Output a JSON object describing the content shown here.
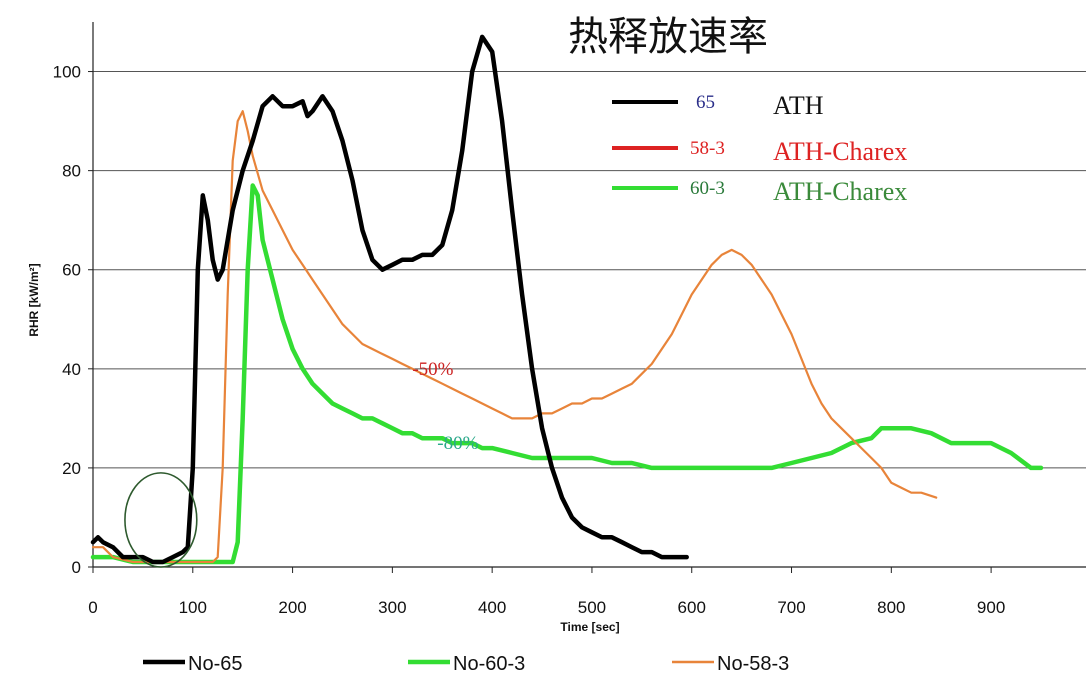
{
  "chart_data": {
    "type": "line",
    "title": "热释放速率",
    "xlabel": "Time [sec]",
    "ylabel": "RHR [kW/m²]",
    "xlim": [
      0,
      950
    ],
    "ylim": [
      0,
      110
    ],
    "x_ticks": [
      0,
      100,
      200,
      300,
      400,
      500,
      600,
      700,
      800,
      900
    ],
    "y_ticks": [
      0,
      20,
      40,
      60,
      80,
      100
    ],
    "grid": "horizontal",
    "legend_bottom": "bottom",
    "series": [
      {
        "name": "No-65",
        "color": "#000000",
        "points": [
          [
            0,
            5
          ],
          [
            5,
            6
          ],
          [
            10,
            5
          ],
          [
            20,
            4
          ],
          [
            30,
            2
          ],
          [
            40,
            2
          ],
          [
            50,
            2
          ],
          [
            60,
            1
          ],
          [
            70,
            1
          ],
          [
            80,
            2
          ],
          [
            90,
            3
          ],
          [
            95,
            4
          ],
          [
            100,
            20
          ],
          [
            105,
            60
          ],
          [
            110,
            75
          ],
          [
            115,
            70
          ],
          [
            120,
            62
          ],
          [
            125,
            58
          ],
          [
            130,
            60
          ],
          [
            140,
            72
          ],
          [
            150,
            80
          ],
          [
            160,
            86
          ],
          [
            170,
            93
          ],
          [
            180,
            95
          ],
          [
            190,
            93
          ],
          [
            200,
            93
          ],
          [
            210,
            94
          ],
          [
            215,
            91
          ],
          [
            220,
            92
          ],
          [
            230,
            95
          ],
          [
            240,
            92
          ],
          [
            250,
            86
          ],
          [
            260,
            78
          ],
          [
            270,
            68
          ],
          [
            280,
            62
          ],
          [
            290,
            60
          ],
          [
            300,
            61
          ],
          [
            310,
            62
          ],
          [
            320,
            62
          ],
          [
            330,
            63
          ],
          [
            340,
            63
          ],
          [
            350,
            65
          ],
          [
            360,
            72
          ],
          [
            370,
            84
          ],
          [
            380,
            100
          ],
          [
            390,
            107
          ],
          [
            400,
            104
          ],
          [
            410,
            90
          ],
          [
            420,
            72
          ],
          [
            430,
            55
          ],
          [
            440,
            40
          ],
          [
            450,
            28
          ],
          [
            460,
            20
          ],
          [
            470,
            14
          ],
          [
            480,
            10
          ],
          [
            490,
            8
          ],
          [
            500,
            7
          ],
          [
            510,
            6
          ],
          [
            520,
            6
          ],
          [
            530,
            5
          ],
          [
            540,
            4
          ],
          [
            550,
            3
          ],
          [
            560,
            3
          ],
          [
            570,
            2
          ],
          [
            580,
            2
          ],
          [
            595,
            2
          ]
        ]
      },
      {
        "name": "No-60-3",
        "color": "#33dd33",
        "points": [
          [
            0,
            2
          ],
          [
            20,
            2
          ],
          [
            40,
            1
          ],
          [
            60,
            1
          ],
          [
            80,
            1
          ],
          [
            100,
            1
          ],
          [
            110,
            1
          ],
          [
            120,
            1
          ],
          [
            130,
            1
          ],
          [
            140,
            1
          ],
          [
            145,
            5
          ],
          [
            150,
            30
          ],
          [
            155,
            60
          ],
          [
            160,
            77
          ],
          [
            165,
            75
          ],
          [
            170,
            66
          ],
          [
            180,
            58
          ],
          [
            190,
            50
          ],
          [
            200,
            44
          ],
          [
            210,
            40
          ],
          [
            220,
            37
          ],
          [
            230,
            35
          ],
          [
            240,
            33
          ],
          [
            250,
            32
          ],
          [
            260,
            31
          ],
          [
            270,
            30
          ],
          [
            280,
            30
          ],
          [
            290,
            29
          ],
          [
            300,
            28
          ],
          [
            310,
            27
          ],
          [
            320,
            27
          ],
          [
            330,
            26
          ],
          [
            340,
            26
          ],
          [
            350,
            26
          ],
          [
            360,
            25
          ],
          [
            370,
            25
          ],
          [
            380,
            25
          ],
          [
            390,
            24
          ],
          [
            400,
            24
          ],
          [
            420,
            23
          ],
          [
            440,
            22
          ],
          [
            460,
            22
          ],
          [
            480,
            22
          ],
          [
            500,
            22
          ],
          [
            520,
            21
          ],
          [
            540,
            21
          ],
          [
            560,
            20
          ],
          [
            580,
            20
          ],
          [
            600,
            20
          ],
          [
            620,
            20
          ],
          [
            640,
            20
          ],
          [
            660,
            20
          ],
          [
            680,
            20
          ],
          [
            700,
            21
          ],
          [
            720,
            22
          ],
          [
            740,
            23
          ],
          [
            760,
            25
          ],
          [
            780,
            26
          ],
          [
            790,
            28
          ],
          [
            800,
            28
          ],
          [
            820,
            28
          ],
          [
            840,
            27
          ],
          [
            860,
            25
          ],
          [
            880,
            25
          ],
          [
            900,
            25
          ],
          [
            920,
            23
          ],
          [
            940,
            20
          ],
          [
            950,
            20
          ]
        ]
      },
      {
        "name": "No-58-3",
        "color": "#e8843a",
        "points": [
          [
            0,
            4
          ],
          [
            10,
            4
          ],
          [
            20,
            2
          ],
          [
            40,
            1
          ],
          [
            60,
            1
          ],
          [
            80,
            1
          ],
          [
            100,
            1
          ],
          [
            110,
            1
          ],
          [
            120,
            1
          ],
          [
            125,
            2
          ],
          [
            130,
            20
          ],
          [
            135,
            55
          ],
          [
            140,
            82
          ],
          [
            145,
            90
          ],
          [
            150,
            92
          ],
          [
            155,
            88
          ],
          [
            160,
            83
          ],
          [
            170,
            76
          ],
          [
            180,
            72
          ],
          [
            190,
            68
          ],
          [
            200,
            64
          ],
          [
            210,
            61
          ],
          [
            220,
            58
          ],
          [
            230,
            55
          ],
          [
            240,
            52
          ],
          [
            250,
            49
          ],
          [
            260,
            47
          ],
          [
            270,
            45
          ],
          [
            280,
            44
          ],
          [
            290,
            43
          ],
          [
            300,
            42
          ],
          [
            310,
            41
          ],
          [
            320,
            40
          ],
          [
            330,
            39
          ],
          [
            340,
            38
          ],
          [
            350,
            37
          ],
          [
            360,
            36
          ],
          [
            370,
            35
          ],
          [
            380,
            34
          ],
          [
            390,
            33
          ],
          [
            400,
            32
          ],
          [
            410,
            31
          ],
          [
            420,
            30
          ],
          [
            430,
            30
          ],
          [
            440,
            30
          ],
          [
            450,
            31
          ],
          [
            460,
            31
          ],
          [
            470,
            32
          ],
          [
            480,
            33
          ],
          [
            490,
            33
          ],
          [
            500,
            34
          ],
          [
            510,
            34
          ],
          [
            520,
            35
          ],
          [
            530,
            36
          ],
          [
            540,
            37
          ],
          [
            550,
            39
          ],
          [
            560,
            41
          ],
          [
            570,
            44
          ],
          [
            580,
            47
          ],
          [
            590,
            51
          ],
          [
            600,
            55
          ],
          [
            610,
            58
          ],
          [
            620,
            61
          ],
          [
            630,
            63
          ],
          [
            640,
            64
          ],
          [
            650,
            63
          ],
          [
            660,
            61
          ],
          [
            670,
            58
          ],
          [
            680,
            55
          ],
          [
            690,
            51
          ],
          [
            700,
            47
          ],
          [
            710,
            42
          ],
          [
            720,
            37
          ],
          [
            730,
            33
          ],
          [
            740,
            30
          ],
          [
            750,
            28
          ],
          [
            760,
            26
          ],
          [
            770,
            24
          ],
          [
            780,
            22
          ],
          [
            790,
            20
          ],
          [
            800,
            17
          ],
          [
            810,
            16
          ],
          [
            820,
            15
          ],
          [
            830,
            15
          ],
          [
            845,
            14
          ]
        ]
      }
    ],
    "inset_legend": [
      {
        "code": "65",
        "material": "ATH",
        "line_color": "#000000",
        "code_color": "#2b2f8a",
        "material_color": "#111111"
      },
      {
        "code": "58-3",
        "material": "ATH-Charex",
        "line_color": "#dd2222",
        "code_color": "#dd2222",
        "material_color": "#dd2222"
      },
      {
        "code": "60-3",
        "material": "ATH-Charex",
        "line_color": "#33dd33",
        "code_color": "#2a7a3a",
        "material_color": "#3a8a3a"
      }
    ],
    "annotations": [
      {
        "text": "-50%",
        "x": 320,
        "y": 40,
        "color": "#cc2222"
      },
      {
        "text": "-80%",
        "x": 345,
        "y": 25,
        "color": "#2aa88a"
      }
    ],
    "highlight_ellipse": {
      "cx": 68,
      "cy": 9.5,
      "rx": 36,
      "ry": 9.5,
      "color": "#2e5a2e"
    }
  }
}
